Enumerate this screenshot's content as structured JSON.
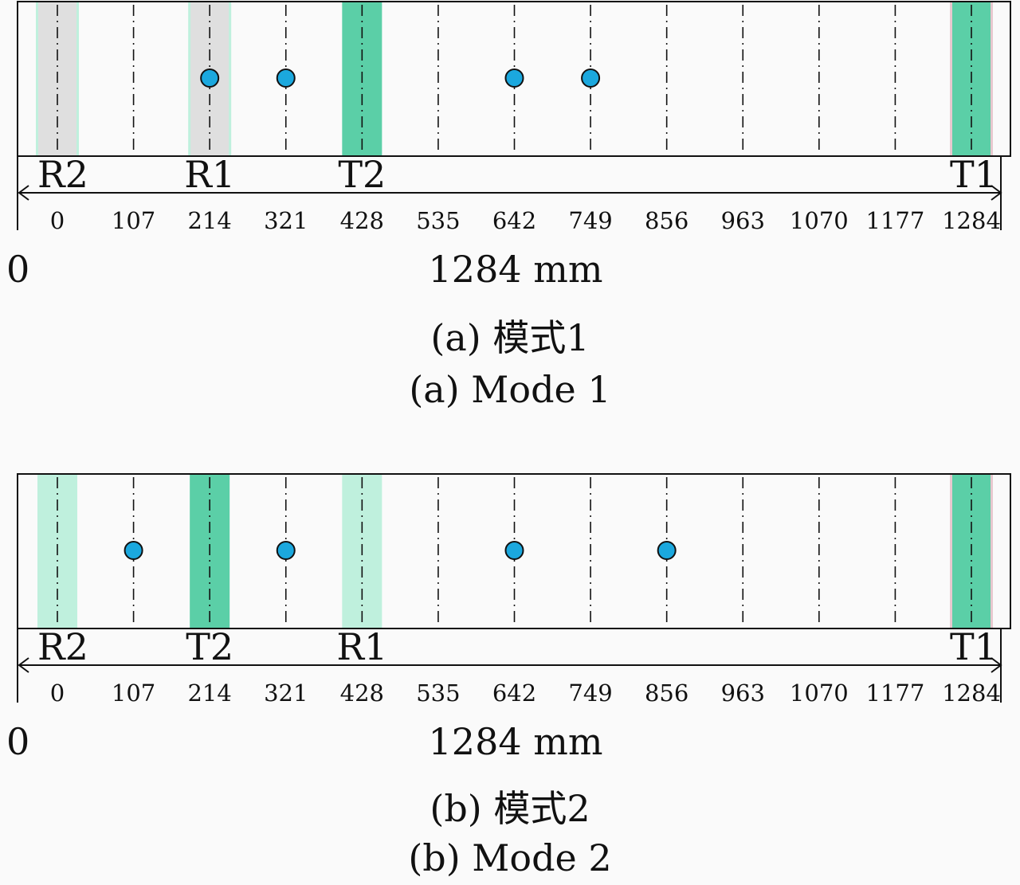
{
  "diagram": {
    "ticks": [
      "0",
      "107",
      "214",
      "321",
      "428",
      "535",
      "642",
      "749",
      "856",
      "963",
      "1070",
      "1177",
      "1284"
    ],
    "origin_label": "0",
    "total_label": "1284 mm",
    "colors": {
      "dark_green": "#5bcfa7",
      "light_green": "#bff0dd",
      "grey": "#dfdfdf",
      "dot_fill": "#1ba8de",
      "dot_stroke": "#111111",
      "outline": "#111111"
    },
    "panels": [
      {
        "id": "mode-1",
        "strips": [
          {
            "label": "R2",
            "pos": 0,
            "style": "grey"
          },
          {
            "label": "R1",
            "pos": 214,
            "style": "grey"
          },
          {
            "label": "T2",
            "pos": 428,
            "style": "dark"
          },
          {
            "label": "T1",
            "pos": 1284,
            "style": "dark"
          }
        ],
        "dots": [
          214,
          321,
          642,
          749
        ],
        "caption_cn": "(a) 模式1",
        "caption_en": "(a) Mode 1"
      },
      {
        "id": "mode-2",
        "strips": [
          {
            "label": "R2",
            "pos": 0,
            "style": "light"
          },
          {
            "label": "T2",
            "pos": 214,
            "style": "dark"
          },
          {
            "label": "R1",
            "pos": 428,
            "style": "light"
          },
          {
            "label": "T1",
            "pos": 1284,
            "style": "dark"
          }
        ],
        "dots": [
          107,
          321,
          642,
          856
        ],
        "caption_cn": "(b) 模式2",
        "caption_en": "(b) Mode 2"
      }
    ]
  }
}
